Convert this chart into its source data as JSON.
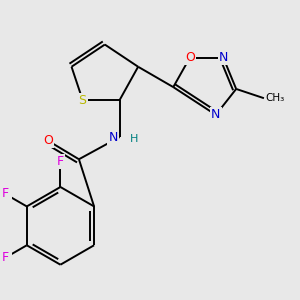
{
  "background_color": "#e8e8e8",
  "atom_colors": {
    "S": "#b8b800",
    "O": "#ff0000",
    "N": "#0000cc",
    "F": "#dd00dd",
    "C": "#000000",
    "H": "#008080"
  }
}
